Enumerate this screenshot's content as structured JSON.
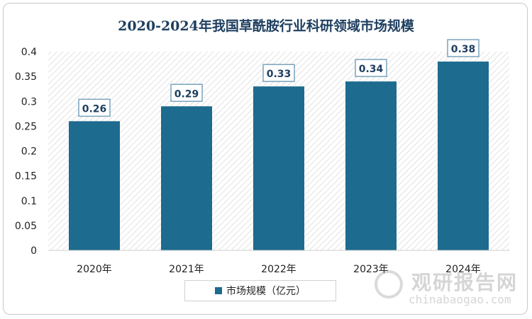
{
  "chart_data": {
    "type": "bar",
    "title": "2020-2024年我国草酰胺行业科研领域市场规模",
    "categories": [
      "2020年",
      "2021年",
      "2022年",
      "2023年",
      "2024年"
    ],
    "series": [
      {
        "name": "市场规模（亿元）",
        "values": [
          0.26,
          0.29,
          0.33,
          0.34,
          0.38
        ]
      }
    ],
    "data_labels": [
      "0.26",
      "0.29",
      "0.33",
      "0.34",
      "0.38"
    ],
    "ylim": [
      0,
      0.4
    ],
    "yticks": [
      "0",
      "0.05",
      "0.1",
      "0.15",
      "0.2",
      "0.25",
      "0.3",
      "0.35",
      "0.4"
    ],
    "bar_color": "#1d6b8e",
    "legend_position": "bottom",
    "grid": false
  },
  "watermark": {
    "name": "观研报告网",
    "url": "chinabaogao.com"
  }
}
